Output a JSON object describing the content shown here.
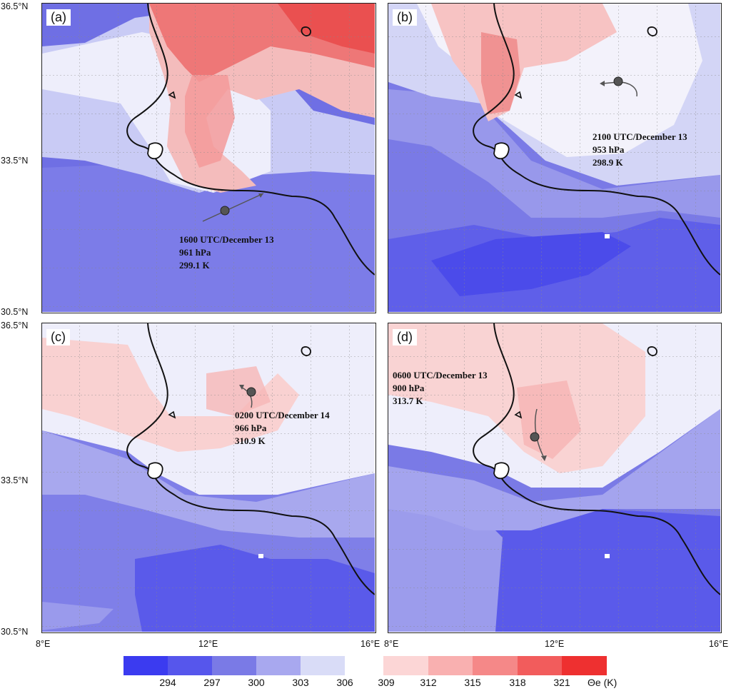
{
  "panels": [
    {
      "label": "(a)",
      "time": "1600 UTC/December 13",
      "pressure": "961 hPa",
      "theta": "299.1 K"
    },
    {
      "label": "(b)",
      "time": "2100 UTC/December 13",
      "pressure": "953 hPa",
      "theta": "298.9 K"
    },
    {
      "label": "(c)",
      "time": "0200 UTC/December 14",
      "pressure": "966 hPa",
      "theta": "310.9 K"
    },
    {
      "label": "(d)",
      "time": "0600 UTC/December 13",
      "pressure": "900 hPa",
      "theta": "313.7 K"
    }
  ],
  "axes": {
    "lat_top": "36.5°N",
    "lat_mid": "33.5°N",
    "lat_bottom": "30.5°N",
    "lon_left": "8°E",
    "lon_mid": "12°E",
    "lon_right": "16°E"
  },
  "colorbar": {
    "unit": "Θe (K)",
    "labels": [
      "294",
      "297",
      "300",
      "303",
      "306",
      "309",
      "312",
      "315",
      "318",
      "321"
    ],
    "cool_colors": [
      "#3b3bf0",
      "#5656ec",
      "#7a7ae6",
      "#a8a8ef",
      "#d9dcf7"
    ],
    "warm_colors": [
      "#fcd6d6",
      "#f9b0b0",
      "#f58888",
      "#f25c5c",
      "#ee3030"
    ]
  }
}
